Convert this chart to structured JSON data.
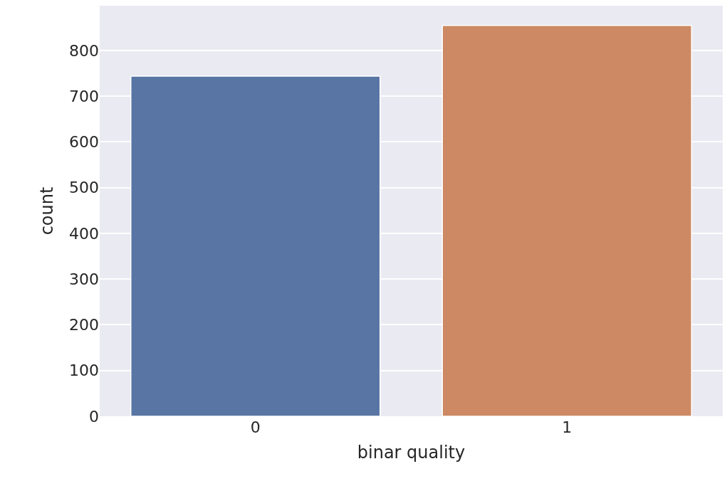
{
  "chart_data": {
    "type": "bar",
    "xlabel": "binar quality",
    "ylabel": "count",
    "categories": [
      "0",
      "1"
    ],
    "values": [
      744,
      855
    ],
    "colors": [
      "#5975a4",
      "#cc8963"
    ],
    "ylim": [
      0,
      898
    ],
    "yticks": [
      0,
      100,
      200,
      300,
      400,
      500,
      600,
      700,
      800
    ],
    "grid": "y"
  }
}
